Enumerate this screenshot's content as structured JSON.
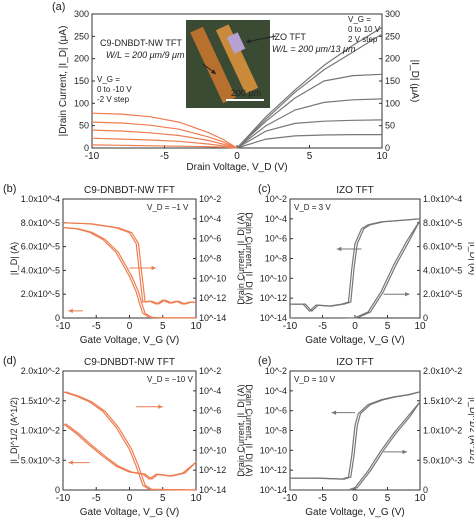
{
  "colors": {
    "ntype_tft": "#ee7d52",
    "izo_tft": "#777777",
    "axis": "#333333",
    "text": "#222222"
  },
  "chart_data": [
    {
      "panel": "(a)",
      "type": "line",
      "xlabel": "Drain Voltage, V_D (V)",
      "ylabel_left": "|Drain Current, |I_D| (μA)",
      "ylabel_right": "|I_D| (μA)",
      "xlim": [
        -10,
        10
      ],
      "x_ticks": [
        "-10",
        "-5",
        "0",
        "5",
        "10"
      ],
      "ylim_left": [
        0,
        300
      ],
      "y_ticks_left": [
        "0",
        "50",
        "100",
        "150",
        "200",
        "250",
        "300"
      ],
      "ylim_right": [
        0,
        300
      ],
      "y_ticks_right": [
        "0",
        "50",
        "100",
        "150",
        "200",
        "250",
        "300"
      ],
      "annotations": {
        "cnbdt_name": "C9-DNBDT-NW TFT",
        "cnbdt_wl": "W/L = 200 μm/9 μm",
        "cnbdt_vg": [
          "V_G =",
          "0 to -10 V",
          "-2 V step"
        ],
        "izo_name": "IZO TFT",
        "izo_wl": "W/L = 200 μm/13 μm",
        "izo_vg": [
          "V_G =",
          "0 to 10 V",
          "2 V step"
        ],
        "scale_bar": "200 μm"
      },
      "series": [
        {
          "group": "C9-DNBDT-NW TFT",
          "points": [
            [
              -10,
              78
            ],
            [
              -8,
              76
            ],
            [
              -6,
              70
            ],
            [
              -4,
              58
            ],
            [
              -2,
              35
            ],
            [
              -1,
              20
            ],
            [
              0,
              0
            ]
          ]
        },
        {
          "group": "C9-DNBDT-NW TFT",
          "points": [
            [
              -10,
              58
            ],
            [
              -8,
              56
            ],
            [
              -6,
              51
            ],
            [
              -4,
              42
            ],
            [
              -2,
              25
            ],
            [
              -1,
              14
            ],
            [
              0,
              0
            ]
          ]
        },
        {
          "group": "C9-DNBDT-NW TFT",
          "points": [
            [
              -10,
              40
            ],
            [
              -8,
              38
            ],
            [
              -6,
              34
            ],
            [
              -4,
              28
            ],
            [
              -2,
              17
            ],
            [
              -1,
              9
            ],
            [
              0,
              0
            ]
          ]
        },
        {
          "group": "C9-DNBDT-NW TFT",
          "points": [
            [
              -10,
              22
            ],
            [
              -8,
              20
            ],
            [
              -6,
              18
            ],
            [
              -4,
              15
            ],
            [
              -2,
              9
            ],
            [
              -1,
              5
            ],
            [
              0,
              0
            ]
          ]
        },
        {
          "group": "C9-DNBDT-NW TFT",
          "points": [
            [
              -10,
              7
            ],
            [
              -8,
              6
            ],
            [
              -6,
              5
            ],
            [
              -4,
              4
            ],
            [
              -2,
              3
            ],
            [
              -1,
              2
            ],
            [
              0,
              0
            ]
          ]
        },
        {
          "group": "IZO TFT",
          "points": [
            [
              0,
              0
            ],
            [
              2,
              70
            ],
            [
              4,
              130
            ],
            [
              6,
              185
            ],
            [
              8,
              230
            ],
            [
              10,
              270
            ]
          ]
        },
        {
          "group": "IZO TFT",
          "points": [
            [
              0,
              0
            ],
            [
              2,
              65
            ],
            [
              4,
              125
            ],
            [
              6,
              175
            ],
            [
              8,
              215
            ],
            [
              10,
              255
            ]
          ]
        },
        {
          "group": "IZO TFT",
          "points": [
            [
              0,
              0
            ],
            [
              2,
              60
            ],
            [
              4,
              112
            ],
            [
              6,
              150
            ],
            [
              8,
              162
            ],
            [
              10,
              165
            ]
          ]
        },
        {
          "group": "IZO TFT",
          "points": [
            [
              0,
              0
            ],
            [
              2,
              50
            ],
            [
              4,
              85
            ],
            [
              6,
              102
            ],
            [
              8,
              108
            ],
            [
              10,
              110
            ]
          ]
        },
        {
          "group": "IZO TFT",
          "points": [
            [
              0,
              0
            ],
            [
              2,
              38
            ],
            [
              4,
              55
            ],
            [
              6,
              60
            ],
            [
              8,
              62
            ],
            [
              10,
              63
            ]
          ]
        },
        {
          "group": "IZO TFT",
          "points": [
            [
              0,
              0
            ],
            [
              2,
              20
            ],
            [
              4,
              27
            ],
            [
              6,
              29
            ],
            [
              8,
              30
            ],
            [
              10,
              30
            ]
          ]
        }
      ]
    },
    {
      "panel": "(b)",
      "type": "line",
      "title": "C9-DNBDT-NW TFT",
      "condition": "V_D = −1 V",
      "xlabel": "Gate Voltage, V_G (V)",
      "ylabel_left": "|I_D| (A)",
      "ylabel_right": "Drain Current, |I_D| (A)",
      "xlim": [
        -10,
        10
      ],
      "x_ticks": [
        "-10",
        "-5",
        "0",
        "5",
        "10"
      ],
      "ylim_left": [
        0,
        0.0001
      ],
      "y_ticks_left": [
        "0",
        "2.0x10^-5",
        "4.0x10^-5",
        "6.0x10^-5",
        "8.0x10^-5",
        "1.0x10^-4"
      ],
      "ylim_right_log": [
        -14,
        -2
      ],
      "y_ticks_right": [
        "10^-14",
        "10^-12",
        "10^-10",
        "10^-8",
        "10^-6",
        "10^-4",
        "10^-2"
      ],
      "linear_series": [
        [
          -10,
          7.6e-05
        ],
        [
          -8,
          7.5e-05
        ],
        [
          -6,
          7.2e-05
        ],
        [
          -4,
          6.6e-05
        ],
        [
          -2,
          5.5e-05
        ],
        [
          0,
          3.5e-05
        ],
        [
          1,
          2.2e-05
        ],
        [
          1.5,
          1.2e-05
        ],
        [
          2,
          4e-06
        ],
        [
          3,
          5e-07
        ],
        [
          5,
          2e-07
        ],
        [
          10,
          2e-07
        ]
      ],
      "log_series": [
        [
          -10,
          -4.4
        ],
        [
          -6,
          -4.5
        ],
        [
          -2,
          -4.9
        ],
        [
          0,
          -5.4
        ],
        [
          1,
          -6.5
        ],
        [
          1.5,
          -9.5
        ],
        [
          2,
          -12.4
        ],
        [
          3,
          -12.3
        ],
        [
          4,
          -12.6
        ],
        [
          5,
          -12.2
        ],
        [
          6,
          -12.5
        ],
        [
          7,
          -12.3
        ],
        [
          8,
          -12.6
        ],
        [
          9,
          -12.4
        ],
        [
          10,
          -12.4
        ]
      ]
    },
    {
      "panel": "(c)",
      "type": "line",
      "title": "IZO TFT",
      "condition": "V_D = 3 V",
      "xlabel": "Gate Voltage, V_G (V)",
      "ylabel_left": "Drain Current, |I_D| (A)",
      "ylabel_right": "|I_D| (A)",
      "xlim": [
        -10,
        10
      ],
      "x_ticks": [
        "-10",
        "-5",
        "0",
        "5",
        "10"
      ],
      "ylim_left_log": [
        -14,
        -2
      ],
      "y_ticks_left": [
        "10^-14",
        "10^-12",
        "10^-10",
        "10^-8",
        "10^-6",
        "10^-4",
        "10^-2"
      ],
      "ylim_right": [
        0,
        0.0001
      ],
      "y_ticks_right": [
        "0",
        "2.0x10^-5",
        "4.0x10^-5",
        "6.0x10^-5",
        "8.0x10^-5",
        "1.0x10^-4"
      ],
      "log_series": [
        [
          -10,
          -12.6
        ],
        [
          -8,
          -12.6
        ],
        [
          -7,
          -13.3
        ],
        [
          -6,
          -12.7
        ],
        [
          -4,
          -12.8
        ],
        [
          -2,
          -12.6
        ],
        [
          -1,
          -12.4
        ],
        [
          -0.5,
          -9
        ],
        [
          0,
          -6.5
        ],
        [
          1,
          -5
        ],
        [
          2,
          -4.6
        ],
        [
          4,
          -4.3
        ],
        [
          6,
          -4.2
        ],
        [
          8,
          -4.1
        ],
        [
          10,
          -4.0
        ]
      ],
      "linear_series": [
        [
          -10,
          0
        ],
        [
          -2,
          0
        ],
        [
          0,
          2e-07
        ],
        [
          2,
          5e-06
        ],
        [
          4,
          2.2e-05
        ],
        [
          6,
          4.5e-05
        ],
        [
          8,
          6.5e-05
        ],
        [
          10,
          8.2e-05
        ]
      ]
    },
    {
      "panel": "(d)",
      "type": "line",
      "title": "C9-DNBDT-NW TFT",
      "condition": "V_D = −10 V",
      "xlabel": "Gate Voltage, V_G (V)",
      "ylabel_left": "|I_D|^1/2 (A^1/2)",
      "ylabel_right": "Drain Current, |I_D| (A)",
      "xlim": [
        -10,
        10
      ],
      "x_ticks": [
        "-10",
        "-5",
        "0",
        "5",
        "10"
      ],
      "ylim_left": [
        0,
        0.02
      ],
      "y_ticks_left": [
        "0",
        "5.0x10^-3",
        "1.0x10^-2",
        "1.5x10^-2",
        "2.0x10^-2"
      ],
      "ylim_right_log": [
        -14,
        -2
      ],
      "y_ticks_right": [
        "10^-14",
        "10^-12",
        "10^-10",
        "10^-8",
        "10^-6",
        "10^-4",
        "10^-2"
      ],
      "linear_series": [
        [
          -10,
          0.0165
        ],
        [
          -8,
          0.0158
        ],
        [
          -6,
          0.0148
        ],
        [
          -4,
          0.0132
        ],
        [
          -2,
          0.0105
        ],
        [
          0,
          0.0068
        ],
        [
          1,
          0.004
        ],
        [
          2,
          0.0008
        ],
        [
          3,
          0.0001
        ],
        [
          10,
          0
        ]
      ],
      "log_series": [
        [
          -10,
          -7.3
        ],
        [
          -8,
          -8.3
        ],
        [
          -6,
          -9.5
        ],
        [
          -4,
          -10.6
        ],
        [
          -2,
          -11.6
        ],
        [
          0,
          -12.2
        ],
        [
          2,
          -12.4
        ],
        [
          3,
          -12.9
        ],
        [
          4,
          -12.4
        ],
        [
          6,
          -12.6
        ],
        [
          8,
          -12.3
        ],
        [
          10,
          -11.2
        ]
      ]
    },
    {
      "panel": "(e)",
      "type": "line",
      "title": "IZO TFT",
      "condition": "V_D = 10 V",
      "xlabel": "Gate Voltage, V_G (V)",
      "ylabel_left": "Drain Current, |I_D| (A)",
      "ylabel_right": "|I_D|^1/2 (A^1/2)",
      "xlim": [
        -10,
        10
      ],
      "x_ticks": [
        "-10",
        "-5",
        "0",
        "5",
        "10"
      ],
      "ylim_left_log": [
        -14,
        -2
      ],
      "y_ticks_left": [
        "10^-14",
        "10^-12",
        "10^-10",
        "10^-8",
        "10^-6",
        "10^-4",
        "10^-2"
      ],
      "ylim_right": [
        0,
        0.02
      ],
      "y_ticks_right": [
        "0",
        "5.0x10^-3",
        "1.0x10^-2",
        "1.5x10^-2",
        "2.0x10^-2"
      ],
      "log_series": [
        [
          -10,
          -12.8
        ],
        [
          -6,
          -12.8
        ],
        [
          -2,
          -12.9
        ],
        [
          -1,
          -12.7
        ],
        [
          -0.5,
          -10.5
        ],
        [
          0,
          -7.5
        ],
        [
          0.5,
          -6.3
        ],
        [
          2,
          -5.4
        ],
        [
          4,
          -4.9
        ],
        [
          6,
          -4.6
        ],
        [
          8,
          -4.4
        ],
        [
          10,
          -4.1
        ]
      ],
      "linear_series": [
        [
          -10,
          0
        ],
        [
          -1,
          0
        ],
        [
          0,
          0.0004
        ],
        [
          2,
          0.0032
        ],
        [
          4,
          0.0066
        ],
        [
          6,
          0.0096
        ],
        [
          8,
          0.0122
        ],
        [
          10,
          0.0148
        ]
      ]
    }
  ]
}
